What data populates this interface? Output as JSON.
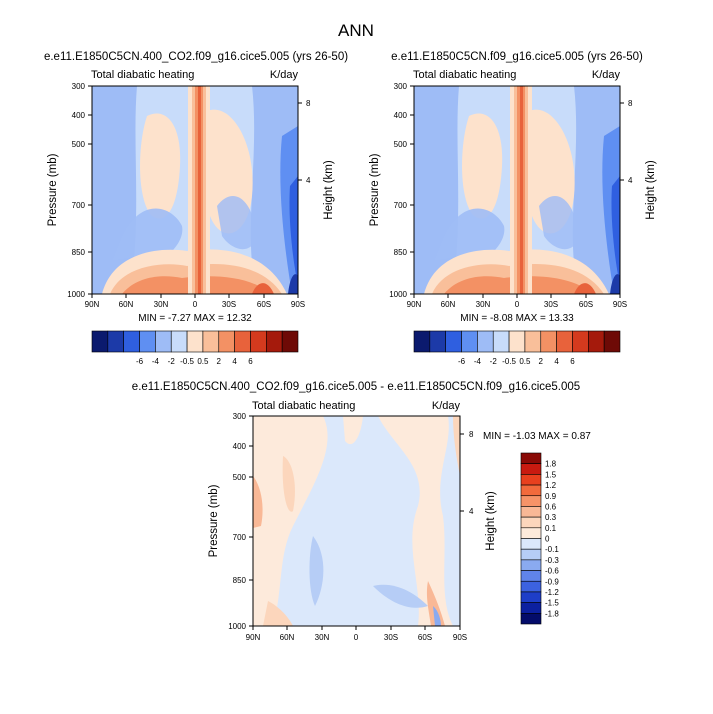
{
  "figure_title": "ANN",
  "chart_data": [
    {
      "type": "heatmap",
      "title": "e.e11.E1850C5CN.400_CO2.f09_g16.cice5.005 (yrs 26-50)",
      "subtitle_left": "Total diabatic heating",
      "subtitle_right": "K/day",
      "xlabel": "",
      "ylabel": "Pressure (mb)",
      "ylabel_right": "Height (km)",
      "x_ticks": [
        "90N",
        "60N",
        "30N",
        "0",
        "30S",
        "60S",
        "90S"
      ],
      "y_ticks": [
        "300",
        "400",
        "500",
        "700",
        "850",
        "1000"
      ],
      "y_right_ticks": [
        "8",
        "4"
      ],
      "stats": "MIN =  -7.27  MAX =  12.32",
      "min": -7.27,
      "max": 12.32,
      "levels": [
        "-6",
        "-4",
        "-2",
        "-0.5",
        "0.5",
        "2",
        "4",
        "6"
      ],
      "colors": [
        "#0b1a6e",
        "#1c3aa8",
        "#2f5fe0",
        "#5f8ff2",
        "#9ebcf6",
        "#c8dcfa",
        "#fde2cc",
        "#f9bf9a",
        "#f39164",
        "#e8623b",
        "#d43a1e",
        "#a51a0c",
        "#6e0a06"
      ]
    },
    {
      "type": "heatmap",
      "title": "e.e11.E1850C5CN.f09_g16.cice5.005 (yrs 26-50)",
      "subtitle_left": "Total diabatic heating",
      "subtitle_right": "K/day",
      "xlabel": "",
      "ylabel": "Pressure (mb)",
      "ylabel_right": "Height (km)",
      "x_ticks": [
        "90N",
        "60N",
        "30N",
        "0",
        "30S",
        "60S",
        "90S"
      ],
      "y_ticks": [
        "300",
        "400",
        "500",
        "700",
        "850",
        "1000"
      ],
      "y_right_ticks": [
        "8",
        "4"
      ],
      "stats": "MIN =  -8.08  MAX =  13.33",
      "min": -8.08,
      "max": 13.33,
      "levels": [
        "-6",
        "-4",
        "-2",
        "-0.5",
        "0.5",
        "2",
        "4",
        "6"
      ],
      "colors": [
        "#0b1a6e",
        "#1c3aa8",
        "#2f5fe0",
        "#5f8ff2",
        "#9ebcf6",
        "#c8dcfa",
        "#fde2cc",
        "#f9bf9a",
        "#f39164",
        "#e8623b",
        "#d43a1e",
        "#a51a0c",
        "#6e0a06"
      ]
    },
    {
      "type": "heatmap",
      "title": "e.e11.E1850C5CN.400_CO2.f09_g16.cice5.005 - e.e11.E1850C5CN.f09_g16.cice5.005",
      "subtitle_left": "Total diabatic heating",
      "subtitle_right": "K/day",
      "xlabel": "",
      "ylabel": "Pressure (mb)",
      "ylabel_right": "Height (km)",
      "x_ticks": [
        "90N",
        "60N",
        "30N",
        "0",
        "30S",
        "60S",
        "90S"
      ],
      "y_ticks": [
        "300",
        "400",
        "500",
        "700",
        "850",
        "1000"
      ],
      "y_right_ticks": [
        "8",
        "4"
      ],
      "stats": "MIN =  -1.03  MAX =   0.87",
      "min": -1.03,
      "max": 0.87,
      "levels": [
        "1.8",
        "1.5",
        "1.2",
        "0.9",
        "0.6",
        "0.3",
        "0.1",
        "0",
        "-0.1",
        "-0.3",
        "-0.6",
        "-0.9",
        "-1.2",
        "-1.5",
        "-1.8"
      ],
      "colors": [
        "#8a0a06",
        "#c81a10",
        "#e8401e",
        "#f26a3c",
        "#f69368",
        "#f9b896",
        "#fcd6bc",
        "#fdeadb",
        "#dbe8fb",
        "#b6cdf6",
        "#8aaaf0",
        "#6084ea",
        "#3c62e0",
        "#1e3ec8",
        "#0c20a0",
        "#040c6a"
      ]
    }
  ]
}
